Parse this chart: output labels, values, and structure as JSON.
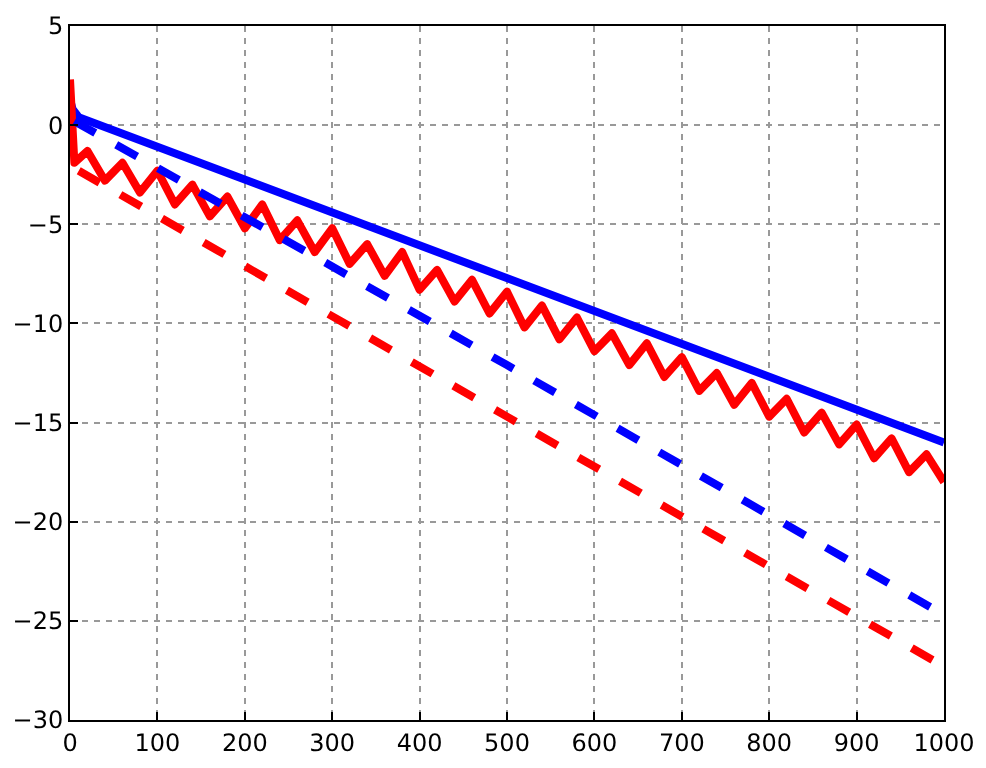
{
  "chart_data": {
    "type": "line",
    "xlim": [
      0,
      1000
    ],
    "ylim": [
      -30,
      5
    ],
    "xticks": [
      0,
      100,
      200,
      300,
      400,
      500,
      600,
      700,
      800,
      900,
      1000
    ],
    "yticks": [
      -30,
      -25,
      -20,
      -15,
      -10,
      -5,
      0,
      5
    ],
    "grid": true,
    "marker": "none",
    "series": [
      {
        "color": "#0000ff",
        "line_style": "solid",
        "x": [
          0,
          3,
          10,
          1000
        ],
        "values": [
          1.3,
          0.8,
          0.4,
          -16.0
        ]
      },
      {
        "color": "#ff0000",
        "line_style": "solid",
        "x": [
          0,
          5,
          20,
          40,
          60,
          80,
          100,
          120,
          140,
          160,
          180,
          200,
          220,
          240,
          260,
          280,
          300,
          320,
          340,
          360,
          380,
          400,
          420,
          440,
          460,
          480,
          500,
          520,
          540,
          560,
          580,
          600,
          620,
          640,
          660,
          680,
          700,
          720,
          740,
          760,
          780,
          800,
          820,
          840,
          860,
          880,
          900,
          920,
          940,
          960,
          980,
          1000
        ],
        "values": [
          2.3,
          -1.9,
          -1.3,
          -2.8,
          -1.9,
          -3.4,
          -2.3,
          -4.0,
          -3.0,
          -4.6,
          -3.6,
          -5.2,
          -4.0,
          -5.8,
          -4.8,
          -6.4,
          -5.2,
          -7.0,
          -6.0,
          -7.6,
          -6.4,
          -8.3,
          -7.3,
          -8.9,
          -7.8,
          -9.5,
          -8.4,
          -10.2,
          -9.1,
          -10.8,
          -9.7,
          -11.4,
          -10.5,
          -12.1,
          -11.0,
          -12.7,
          -11.7,
          -13.4,
          -12.5,
          -14.1,
          -13.0,
          -14.7,
          -13.8,
          -15.5,
          -14.5,
          -16.1,
          -15.1,
          -16.8,
          -15.8,
          -17.5,
          -16.6,
          -18.0
        ]
      },
      {
        "color": "#0000ff",
        "line_style": "dashed",
        "x": [
          5,
          500,
          1000
        ],
        "values": [
          0.2,
          -12.1,
          -24.7
        ]
      },
      {
        "color": "#ff0000",
        "line_style": "dashed",
        "x": [
          10,
          500,
          1000
        ],
        "values": [
          -2.3,
          -14.7,
          -27.3
        ]
      }
    ]
  }
}
